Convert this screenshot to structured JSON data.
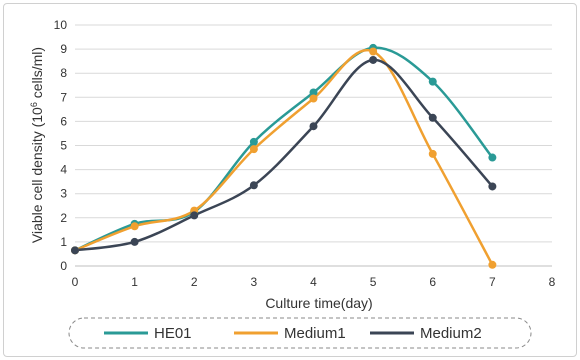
{
  "chart_data": {
    "type": "line",
    "xlabel": "Culture time(day)",
    "ylabel_main": "Viable cell density (10",
    "ylabel_sup": "6",
    "ylabel_end": " cells/ml)",
    "xlim": [
      0,
      8
    ],
    "ylim": [
      0,
      10
    ],
    "x_ticks": [
      "0",
      "1",
      "2",
      "3",
      "4",
      "5",
      "6",
      "7",
      "8"
    ],
    "y_ticks": [
      "0",
      "1",
      "2",
      "3",
      "4",
      "5",
      "6",
      "7",
      "8",
      "9",
      "10"
    ],
    "grid": true,
    "legend_position": "bottom",
    "series": [
      {
        "name": "HE01",
        "color": "#2a9a96",
        "x": [
          0,
          1,
          2,
          3,
          4,
          5,
          6,
          7
        ],
        "y": [
          0.65,
          1.75,
          2.25,
          5.15,
          7.2,
          9.05,
          7.65,
          4.5
        ]
      },
      {
        "name": "Medium1",
        "color": "#f0a030",
        "x": [
          0,
          1,
          2,
          3,
          4,
          5,
          6,
          7
        ],
        "y": [
          0.65,
          1.65,
          2.3,
          4.85,
          6.95,
          8.9,
          4.65,
          0.05
        ]
      },
      {
        "name": "Medium2",
        "color": "#3b4555",
        "x": [
          0,
          1,
          2,
          3,
          4,
          5,
          6,
          7
        ],
        "y": [
          0.65,
          1.0,
          2.1,
          3.35,
          5.8,
          8.55,
          6.15,
          3.3
        ]
      }
    ]
  }
}
